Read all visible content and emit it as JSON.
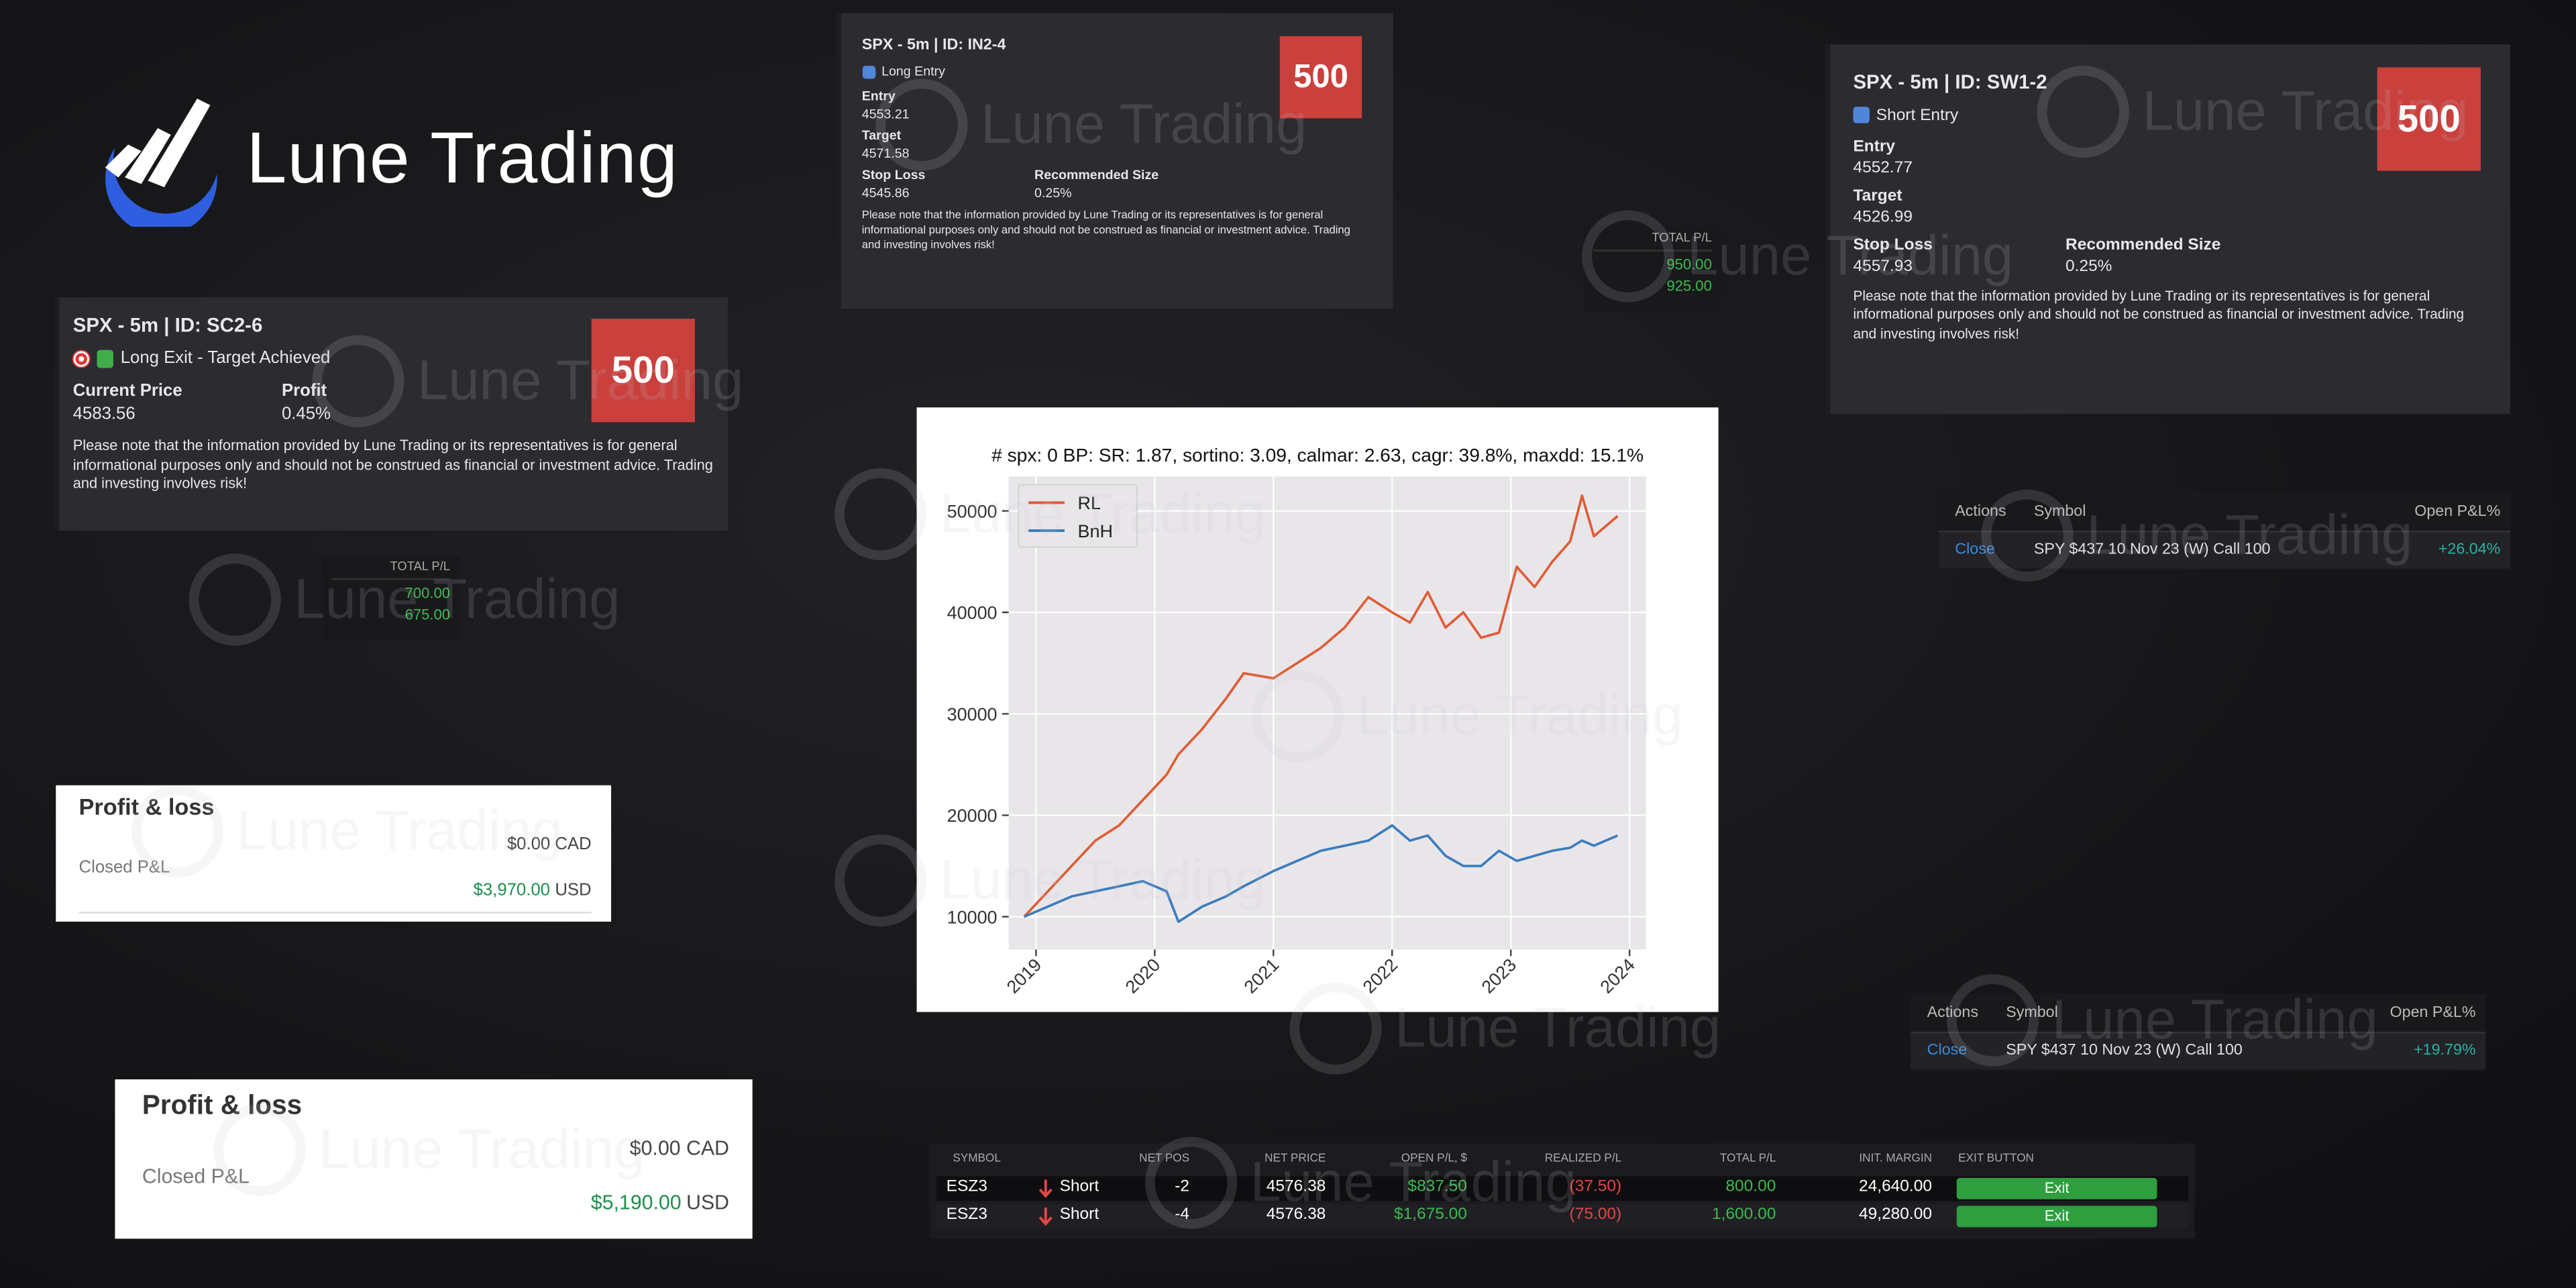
{
  "logo": {
    "text": "Lune Trading"
  },
  "watermark": "Lune Trading",
  "signal_cards": [
    {
      "title": "SPX - 5m | ID: SC2-6",
      "badge": "500",
      "status": "Long Exit - Target Achieved",
      "fields": [
        {
          "label": "Current Price",
          "value": "4583.56"
        },
        {
          "label": "Profit",
          "value": "0.45%"
        }
      ],
      "disclaimer": "Please note that the information provided by Lune Trading or its representatives is for general informational purposes only and should not be construed as financial or investment advice. Trading and investing involves risk!"
    },
    {
      "title": "SPX - 5m | ID: IN2-4",
      "badge": "500",
      "status": "Long Entry",
      "fields": [
        {
          "label": "Entry",
          "value": "4553.21"
        },
        {
          "label": "Target",
          "value": "4571.58"
        },
        {
          "label": "Stop Loss",
          "value": "4545.86"
        },
        {
          "label": "Recommended Size",
          "value": "0.25%"
        }
      ],
      "disclaimer": "Please note that the information provided by Lune Trading or its representatives is for general informational purposes only and should not be construed as financial or investment advice. Trading and investing involves risk!"
    },
    {
      "title": "SPX - 5m | ID: SW1-2",
      "badge": "500",
      "status": "Short Entry",
      "fields": [
        {
          "label": "Entry",
          "value": "4552.77"
        },
        {
          "label": "Target",
          "value": "4526.99"
        },
        {
          "label": "Stop Loss",
          "value": "4557.93"
        },
        {
          "label": "Recommended Size",
          "value": "0.25%"
        }
      ],
      "disclaimer": "Please note that the information provided by Lune Trading or its representatives is for general informational purposes only and should not be construed as financial or investment advice. Trading and investing involves risk!"
    }
  ],
  "total_pl_widgets": [
    {
      "header": "TOTAL P/L",
      "values": [
        "700.00",
        "675.00"
      ]
    },
    {
      "header": "TOTAL P/L",
      "values": [
        "950.00",
        "925.00"
      ]
    }
  ],
  "pnl_widgets": [
    {
      "title": "Profit & loss",
      "balance": "$0.00 CAD",
      "label": "Closed P&L",
      "amount": "$3,970.00",
      "currency": "USD"
    },
    {
      "title": "Profit & loss",
      "balance": "$0.00 CAD",
      "label": "Closed P&L",
      "amount": "$5,190.00",
      "currency": "USD"
    }
  ],
  "positions_widgets": [
    {
      "headers": [
        "Actions",
        "Symbol",
        "Open P&L%"
      ],
      "row": [
        "Close",
        "SPY $437 10 Nov 23 (W) Call 100",
        "+26.04%"
      ]
    },
    {
      "headers": [
        "Actions",
        "Symbol",
        "Open P&L%"
      ],
      "row": [
        "Close",
        "SPY $437 10 Nov 23 (W) Call 100",
        "+19.79%"
      ]
    }
  ],
  "futures_table": {
    "headers": [
      "SYMBOL",
      "NET POS",
      "NET PRICE",
      "OPEN P/L, $",
      "REALIZED P/L",
      "TOTAL P/L",
      "INIT. MARGIN",
      "EXIT BUTTON"
    ],
    "rows": [
      [
        "ESZ3",
        "Short",
        "-2",
        "4576.38",
        "$837.50",
        "(37.50)",
        "800.00",
        "24,640.00",
        "Exit"
      ],
      [
        "ESZ3",
        "Short",
        "-4",
        "4576.38",
        "$1,675.00",
        "(75.00)",
        "1,600.00",
        "49,280.00",
        "Exit"
      ]
    ]
  },
  "chart_data": {
    "type": "line",
    "title": "# spx: 0 BP: SR: 1.87, sortino: 3.09, calmar: 2.63, cagr: 39.8%, maxdd: 15.1%",
    "x": [
      2018.9,
      2019.1,
      2019.3,
      2019.5,
      2019.7,
      2019.9,
      2020.1,
      2020.2,
      2020.4,
      2020.6,
      2020.75,
      2021.0,
      2021.2,
      2021.4,
      2021.6,
      2021.8,
      2022.0,
      2022.15,
      2022.3,
      2022.45,
      2022.6,
      2022.75,
      2022.9,
      2023.05,
      2023.2,
      2023.35,
      2023.5,
      2023.6,
      2023.7,
      2023.8,
      2023.9
    ],
    "series": [
      {
        "name": "RL",
        "color": "#e05d36",
        "values": [
          10000,
          12500,
          15000,
          17500,
          19000,
          21500,
          24000,
          26000,
          28500,
          31500,
          34000,
          33500,
          35000,
          36500,
          38500,
          41500,
          40000,
          39000,
          42000,
          38500,
          40000,
          37500,
          38000,
          44500,
          42500,
          45000,
          47000,
          51500,
          47500,
          48500,
          49500
        ]
      },
      {
        "name": "BnH",
        "color": "#3b7dbd",
        "values": [
          10000,
          11000,
          12000,
          12500,
          13000,
          13500,
          12500,
          9500,
          11000,
          12000,
          13000,
          14500,
          15500,
          16500,
          17000,
          17500,
          19000,
          17500,
          18000,
          16000,
          15000,
          15000,
          16500,
          15500,
          16000,
          16500,
          16800,
          17500,
          17000,
          17500,
          18000
        ]
      }
    ],
    "xlim": [
      2018.77,
      2024.14
    ],
    "ylim": [
      6760,
      53400
    ],
    "xticks": [
      2019,
      2020,
      2021,
      2022,
      2023,
      2024
    ],
    "yticks": [
      10000,
      20000,
      30000,
      40000,
      50000
    ],
    "grid": true,
    "legend": "upper-left"
  }
}
